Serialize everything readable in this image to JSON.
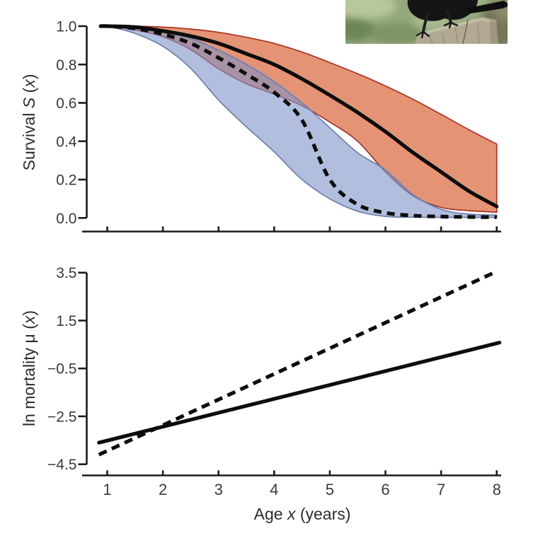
{
  "figure": {
    "labels": {
      "survival_y_parts": [
        "Survival ",
        "S",
        " (",
        "x",
        ")"
      ],
      "mortality_y_parts": [
        "ln mortality ",
        "μ",
        " (",
        "x",
        ")"
      ],
      "x_axis_parts": [
        "Age ",
        "x",
        " (years)"
      ]
    },
    "photo": {
      "description": "black corvid perched on a weathered wooden post, blurred green background"
    },
    "colors": {
      "axis": "#1c1c1c",
      "tick_text": "#3a3a3a",
      "line": "#0c0c0c",
      "band_orange_fill": "#d96b3f",
      "band_orange_stroke": "#a93226",
      "band_blue_fill": "#7e93c6",
      "band_blue_stroke": "#6d7fae"
    }
  },
  "chart_data": [
    {
      "panel": "survival",
      "type": "line",
      "title": "",
      "xlabel": "",
      "ylabel": "Survival S(x)",
      "xlim": [
        0.6,
        8.45
      ],
      "ylim": [
        0.0,
        1.0
      ],
      "grid": false,
      "legend": "none",
      "xticks": {
        "values": [
          1,
          2,
          3,
          4,
          5,
          6,
          7,
          8
        ],
        "labels": [
          "",
          "",
          "",
          "",
          "",
          "",
          "",
          ""
        ]
      },
      "yticks": {
        "values": [
          1.0,
          0.8,
          0.6,
          0.4,
          0.2,
          0.0
        ],
        "labels": [
          "1.0",
          "0.8",
          "0.6",
          "0.4",
          "0.2",
          "0.0"
        ]
      },
      "x": [
        0.88,
        1,
        1.5,
        2,
        2.5,
        3,
        3.5,
        4,
        4.5,
        5,
        5.5,
        6,
        6.5,
        7,
        7.5,
        8
      ],
      "series": [
        {
          "name": "survival-solid-estimate",
          "style": "solid",
          "values": [
            1.0,
            1.0,
            0.995,
            0.975,
            0.948,
            0.91,
            0.856,
            0.8,
            0.725,
            0.64,
            0.55,
            0.45,
            0.34,
            0.24,
            0.14,
            0.06
          ]
        },
        {
          "name": "survival-dashed-estimate",
          "style": "dashed",
          "values": [
            1.0,
            1.0,
            0.988,
            0.958,
            0.91,
            0.835,
            0.75,
            0.655,
            0.51,
            0.2,
            0.07,
            0.027,
            0.012,
            0.007,
            0.005,
            0.004
          ]
        }
      ],
      "bands": [
        {
          "name": "confidence-band-orange",
          "color_key": "orange",
          "opacity": 0.72,
          "closed_right": true,
          "upper": [
            1.0,
            1.0,
            1.0,
            0.995,
            0.985,
            0.968,
            0.942,
            0.91,
            0.865,
            0.81,
            0.752,
            0.688,
            0.618,
            0.54,
            0.46,
            0.385
          ],
          "lower": [
            1.0,
            1.0,
            0.98,
            0.945,
            0.878,
            0.778,
            0.7,
            0.645,
            0.585,
            0.5,
            0.4,
            0.24,
            0.115,
            0.055,
            0.038,
            0.03
          ]
        },
        {
          "name": "confidence-band-blue",
          "color_key": "blue",
          "opacity": 0.6,
          "closed_right": false,
          "upper": [
            1.0,
            1.0,
            0.995,
            0.975,
            0.936,
            0.875,
            0.8,
            0.71,
            0.6,
            0.47,
            0.34,
            0.25,
            0.12,
            0.045,
            0.02,
            0.015
          ],
          "lower": [
            1.0,
            1.0,
            0.962,
            0.895,
            0.78,
            0.615,
            0.475,
            0.345,
            0.2,
            0.1,
            0.035,
            0.008,
            0.004,
            0.003,
            0.003,
            0.003
          ]
        }
      ]
    },
    {
      "panel": "mortality",
      "type": "line",
      "title": "",
      "xlabel": "Age x (years)",
      "ylabel": "ln mortality μ(x)",
      "xlim": [
        0.6,
        8.45
      ],
      "ylim": [
        -4.5,
        3.5
      ],
      "grid": false,
      "legend": "none",
      "xticks": {
        "values": [
          1,
          2,
          3,
          4,
          5,
          6,
          7,
          8
        ],
        "labels": [
          "1",
          "2",
          "3",
          "4",
          "5",
          "6",
          "7",
          "8"
        ]
      },
      "yticks": {
        "values": [
          3.5,
          1.5,
          -0.5,
          -2.5,
          -4.5
        ],
        "labels": [
          "3.5",
          "1.5",
          "−0.5",
          "−2.5",
          "−4.5"
        ]
      },
      "series": [
        {
          "name": "mortality-solid-line",
          "style": "solid",
          "x": [
            0.85,
            8.05
          ],
          "values": [
            -3.6,
            0.58
          ]
        },
        {
          "name": "mortality-dashed-line",
          "style": "dashed",
          "x": [
            0.85,
            7.95
          ],
          "values": [
            -4.1,
            3.5
          ]
        }
      ]
    }
  ]
}
